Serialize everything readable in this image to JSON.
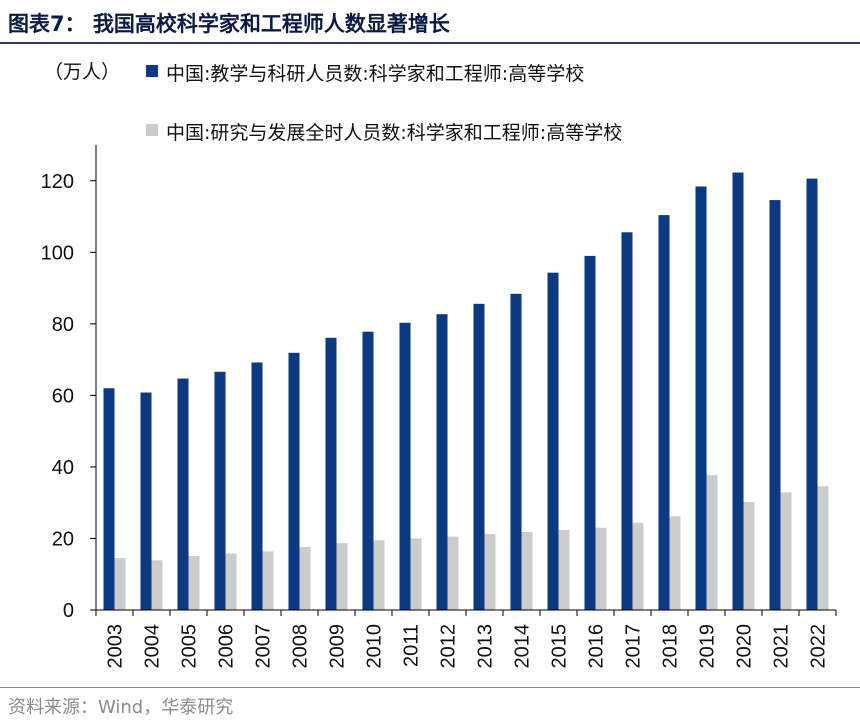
{
  "header": {
    "title": "图表7：  我国高校科学家和工程师人数显著增长"
  },
  "footer": {
    "source": "资料来源：Wind，华泰研究"
  },
  "chart_data": {
    "type": "bar",
    "title": "图表7：  我国高校科学家和工程师人数显著增长",
    "unit_label": "（万人）",
    "xlabel": "",
    "ylabel": "",
    "ylim": [
      0,
      130
    ],
    "yticks": [
      0,
      20,
      40,
      60,
      80,
      100,
      120
    ],
    "grid": false,
    "legend_position": "top-left",
    "categories": [
      "2003",
      "2004",
      "2005",
      "2006",
      "2007",
      "2008",
      "2009",
      "2010",
      "2011",
      "2012",
      "2013",
      "2014",
      "2015",
      "2016",
      "2017",
      "2018",
      "2019",
      "2020",
      "2021",
      "2022"
    ],
    "series": [
      {
        "name": "中国:教学与科研人员数:科学家和工程师:高等学校",
        "color": "#0b3a82",
        "values": [
          62.0,
          60.8,
          64.7,
          66.6,
          69.2,
          71.9,
          76.1,
          77.8,
          80.3,
          82.7,
          85.6,
          88.4,
          94.3,
          99.0,
          105.6,
          110.4,
          118.4,
          122.3,
          114.6,
          120.6
        ]
      },
      {
        "name": "中国:研究与发展全时人员数:科学家和工程师:高等学校",
        "color": "#cccccc",
        "values": [
          14.5,
          13.9,
          15.1,
          15.8,
          16.4,
          17.6,
          18.7,
          19.5,
          20.0,
          20.5,
          21.2,
          21.8,
          22.4,
          23.0,
          24.4,
          26.2,
          37.7,
          30.2,
          32.9,
          34.6
        ]
      }
    ]
  }
}
